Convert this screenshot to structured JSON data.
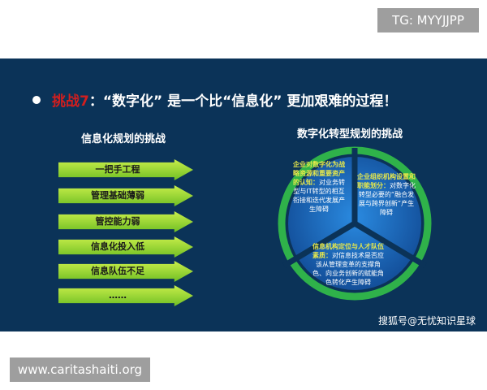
{
  "tg_badge": "TG: MYYJJPP",
  "slide": {
    "title_red": "挑战7",
    "title_rest": "：“数字化” 是一个比“信息化” 更加艰难的过程！",
    "left_heading": "信息化规划的挑战",
    "left_items": [
      "一把手工程",
      "管理基础薄弱",
      "管控能力弱",
      "信息化投入低",
      "信息队伍不足",
      "……"
    ],
    "right_heading": "数字化转型规划的挑战",
    "segments": [
      {
        "bold": "企业对数字化为战略资源和重要资产的认知：",
        "text": "对业务转型与IT转型的相互衔接和迭代发展产生障碍"
      },
      {
        "bold": "企业组织机构设置和职能划分：",
        "text": "对数字化转型必要的“融合发展与跨界创新”产生障碍"
      },
      {
        "bold": "信息机构定位与人才队伍素质：",
        "text": "对信息技术是否应该从管理变革的支撑角色、向业务创新的赋能角色转化产生障碍"
      }
    ],
    "watermark": "搜狐号@无忧知识星球"
  },
  "site_badge": "www.caritashaiti.org",
  "colors": {
    "slide_bg": "#0b3358",
    "accent_red": "#d21e1e",
    "arrow_green": "#8fd13a",
    "circle_blue": "#1c6fc4"
  }
}
